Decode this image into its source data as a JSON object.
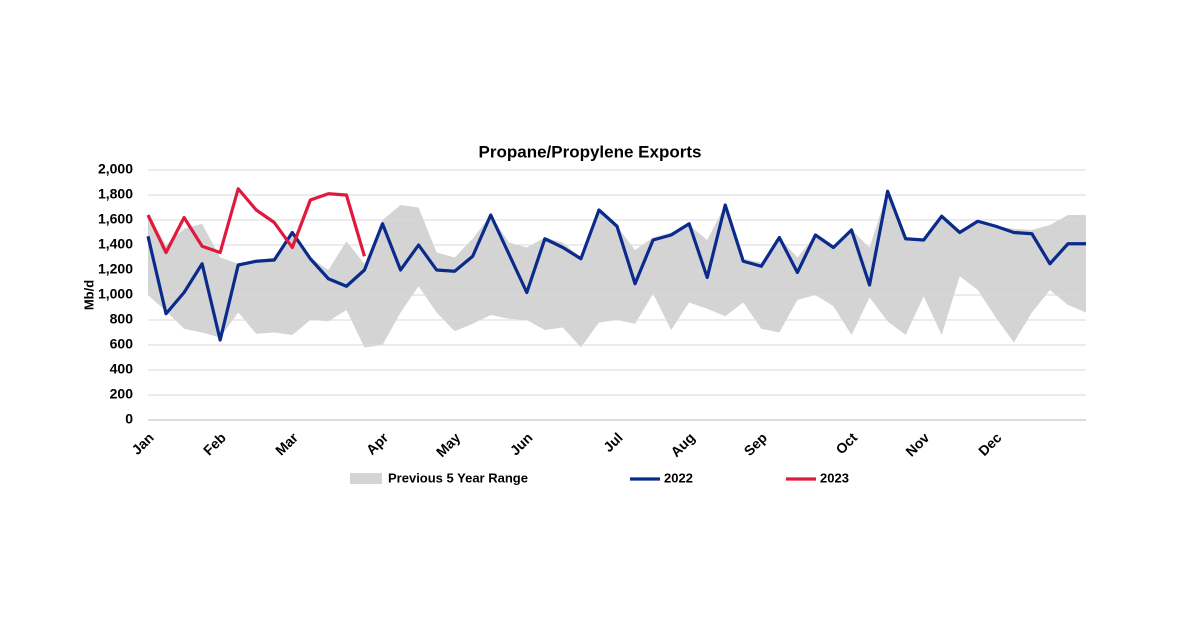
{
  "chart_data": {
    "type": "line",
    "title": "Propane/Propylene Exports",
    "y_label": "Mb/d",
    "categories": [
      "Jan",
      null,
      null,
      null,
      "Feb",
      null,
      null,
      null,
      "Mar",
      null,
      null,
      null,
      null,
      "Apr",
      null,
      null,
      null,
      "May",
      null,
      null,
      null,
      "Jun",
      null,
      null,
      null,
      null,
      "Jul",
      null,
      null,
      null,
      "Aug",
      null,
      null,
      null,
      "Sep",
      null,
      null,
      null,
      null,
      "Oct",
      null,
      null,
      null,
      "Nov",
      null,
      null,
      null,
      "Dec",
      null,
      null,
      null,
      null,
      null
    ],
    "range": {
      "name": "Previous 5 Year Range",
      "color": "#d4d4d4",
      "upper": [
        1640,
        1400,
        1530,
        1570,
        1300,
        1250,
        1280,
        1300,
        1500,
        1300,
        1200,
        1430,
        1250,
        1600,
        1720,
        1700,
        1340,
        1300,
        1450,
        1640,
        1420,
        1380,
        1460,
        1420,
        1300,
        1680,
        1550,
        1360,
        1460,
        1500,
        1560,
        1440,
        1720,
        1290,
        1260,
        1460,
        1300,
        1480,
        1380,
        1520,
        1380,
        1830,
        1460,
        1450,
        1640,
        1520,
        1590,
        1550,
        1530,
        1520,
        1560,
        1640,
        1640
      ],
      "lower": [
        1000,
        870,
        730,
        700,
        660,
        860,
        690,
        700,
        680,
        800,
        790,
        880,
        580,
        600,
        860,
        1070,
        860,
        710,
        770,
        840,
        810,
        800,
        720,
        740,
        580,
        780,
        800,
        770,
        1010,
        720,
        940,
        890,
        830,
        940,
        730,
        700,
        960,
        1000,
        910,
        680,
        980,
        790,
        680,
        990,
        680,
        1150,
        1040,
        820,
        620,
        860,
        1040,
        920,
        860
      ]
    },
    "series": [
      {
        "name": "2022",
        "color": "#0a2a8c",
        "values": [
          1470,
          850,
          1020,
          1250,
          640,
          1240,
          1270,
          1280,
          1500,
          1290,
          1130,
          1070,
          1200,
          1570,
          1200,
          1400,
          1200,
          1190,
          1310,
          1640,
          1330,
          1020,
          1450,
          1380,
          1290,
          1680,
          1550,
          1090,
          1440,
          1480,
          1570,
          1140,
          1720,
          1270,
          1230,
          1460,
          1180,
          1480,
          1380,
          1520,
          1080,
          1830,
          1450,
          1440,
          1630,
          1500,
          1590,
          1550,
          1500,
          1490,
          1250,
          1410,
          1410
        ]
      },
      {
        "name": "2023",
        "color": "#e0193f",
        "values": [
          1640,
          1340,
          1620,
          1390,
          1340,
          1850,
          1680,
          1580,
          1380,
          1760,
          1810,
          1800,
          1310,
          null,
          null,
          null,
          null,
          null,
          null,
          null,
          null,
          null,
          null,
          null,
          null,
          null,
          null,
          null,
          null,
          null,
          null,
          null,
          null,
          null,
          null,
          null,
          null,
          null,
          null,
          null,
          null,
          null,
          null,
          null,
          null,
          null,
          null,
          null,
          null,
          null,
          null,
          null,
          null
        ]
      }
    ],
    "ylim": [
      0,
      2000
    ],
    "yticks": [
      0,
      200,
      400,
      600,
      800,
      {
        "value": 1000,
        "label": "1,000"
      },
      {
        "value": 1200,
        "label": "1,200"
      },
      {
        "value": 1400,
        "label": "1,400"
      },
      {
        "value": 1600,
        "label": "1,600"
      },
      {
        "value": 1800,
        "label": "1,800"
      },
      {
        "value": 2000,
        "label": "2,000"
      }
    ],
    "grid": true
  }
}
